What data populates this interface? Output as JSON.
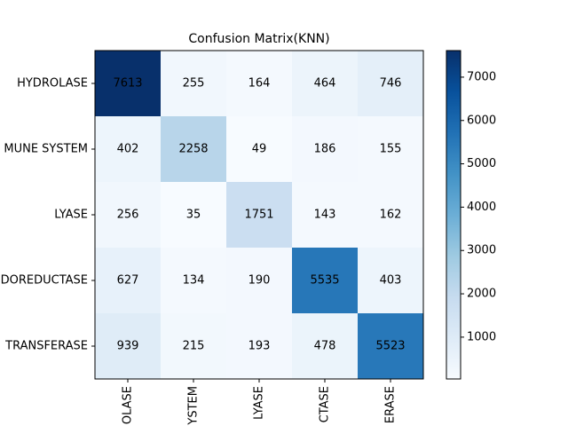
{
  "chart_data": {
    "type": "heatmap",
    "title": "Confusion Matrix(KNN)",
    "y_categories": [
      "HYDROLASE",
      "MUNE SYSTEM",
      "LYASE",
      "DOREDUCTASE",
      "TRANSFERASE"
    ],
    "x_categories": [
      "OLASE",
      "YSTEM",
      "LYASE",
      "CTASE",
      "ERASE"
    ],
    "values": [
      [
        7613,
        255,
        164,
        464,
        746
      ],
      [
        402,
        2258,
        49,
        186,
        155
      ],
      [
        256,
        35,
        1751,
        143,
        162
      ],
      [
        627,
        134,
        190,
        5535,
        403
      ],
      [
        939,
        215,
        193,
        478,
        5523
      ]
    ],
    "zlim": [
      35,
      7613
    ],
    "zticks": [
      1000,
      2000,
      3000,
      4000,
      5000,
      6000,
      7000
    ],
    "colormap": [
      "#f7fbff",
      "#deebf7",
      "#c6dbef",
      "#9ecae1",
      "#6baed6",
      "#4292c6",
      "#2171b5",
      "#08519c",
      "#08306b"
    ]
  }
}
